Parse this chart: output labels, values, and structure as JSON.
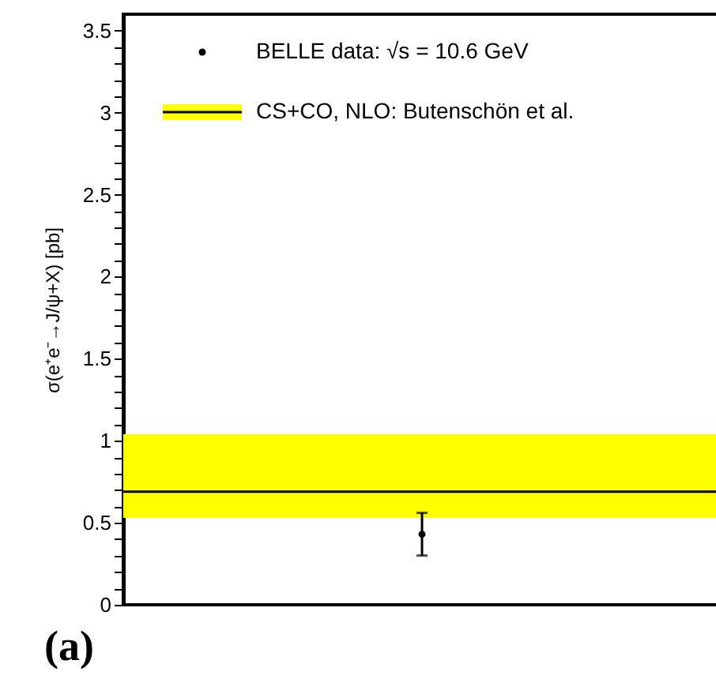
{
  "chart_data": {
    "type": "scatter",
    "categories": [
      null
    ],
    "series": [
      {
        "name": "BELLE data: √s = 10.6 GeV",
        "color": "#000000",
        "values": [
          0.43
        ],
        "errors": [
          0.13
        ]
      }
    ],
    "ylabel": "σ(e⁺e⁻→J/ψ+X)  [pb]",
    "ylim": [
      0,
      3.6
    ],
    "yticks": [
      0,
      {
        "value": 0.1,
        "label": null
      },
      {
        "value": 0.2,
        "label": null
      },
      {
        "value": 0.3,
        "label": null
      },
      {
        "value": 0.4,
        "label": null
      },
      0.5,
      {
        "value": 0.6,
        "label": null
      },
      {
        "value": 0.7,
        "label": null
      },
      {
        "value": 0.8,
        "label": null
      },
      {
        "value": 0.9,
        "label": null
      },
      1,
      {
        "value": 1.1,
        "label": null
      },
      {
        "value": 1.2,
        "label": null
      },
      {
        "value": 1.3,
        "label": null
      },
      {
        "value": 1.4,
        "label": null
      },
      1.5,
      {
        "value": 1.6,
        "label": null
      },
      {
        "value": 1.7,
        "label": null
      },
      {
        "value": 1.8,
        "label": null
      },
      {
        "value": 1.9,
        "label": null
      },
      2,
      {
        "value": 2.1,
        "label": null
      },
      {
        "value": 2.2,
        "label": null
      },
      {
        "value": 2.3,
        "label": null
      },
      {
        "value": 2.4,
        "label": null
      },
      2.5,
      {
        "value": 2.6,
        "label": null
      },
      {
        "value": 2.7,
        "label": null
      },
      {
        "value": 2.8,
        "label": null
      },
      {
        "value": 2.9,
        "label": null
      },
      3,
      {
        "value": 3.1,
        "label": null
      },
      {
        "value": 3.2,
        "label": null
      },
      {
        "value": 3.3,
        "label": null
      },
      {
        "value": 3.4,
        "label": null
      },
      3.5
    ],
    "ref_lines": [
      {
        "axis": "y",
        "value": 0.69,
        "label": "CS+CO, NLO: Butenschön et al.",
        "color": "#000000"
      }
    ],
    "bands": [
      {
        "axis": "y",
        "from": 0.53,
        "to": 1.04,
        "color": "#ffff00"
      }
    ],
    "annotations": [
      "(a)"
    ],
    "legend": "top",
    "grid": false,
    "marker": "circle",
    "tick_labels": "y"
  }
}
